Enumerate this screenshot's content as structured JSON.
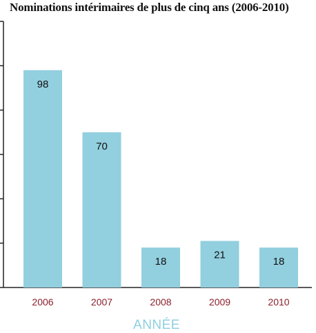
{
  "chart_data": {
    "type": "bar",
    "title": "Nominations intérimaires de plus de cinq ans (2006-2010)",
    "xlabel": "ANNÉE",
    "ylabel": "",
    "categories": [
      "2006",
      "2007",
      "2008",
      "2009",
      "2010"
    ],
    "values": [
      98,
      70,
      18,
      21,
      18
    ],
    "data_labels": [
      "98",
      "70",
      "18",
      "21",
      "18"
    ],
    "ylim": [
      0,
      120
    ],
    "yticks": [
      0,
      20,
      40,
      60,
      80,
      100,
      120
    ],
    "grid": false,
    "legend": "none",
    "colors": {
      "bar": "#92cfdf",
      "axis": "#222222",
      "tick_label": "#8b1f2a",
      "axis_title": "#8ecfe0"
    }
  }
}
